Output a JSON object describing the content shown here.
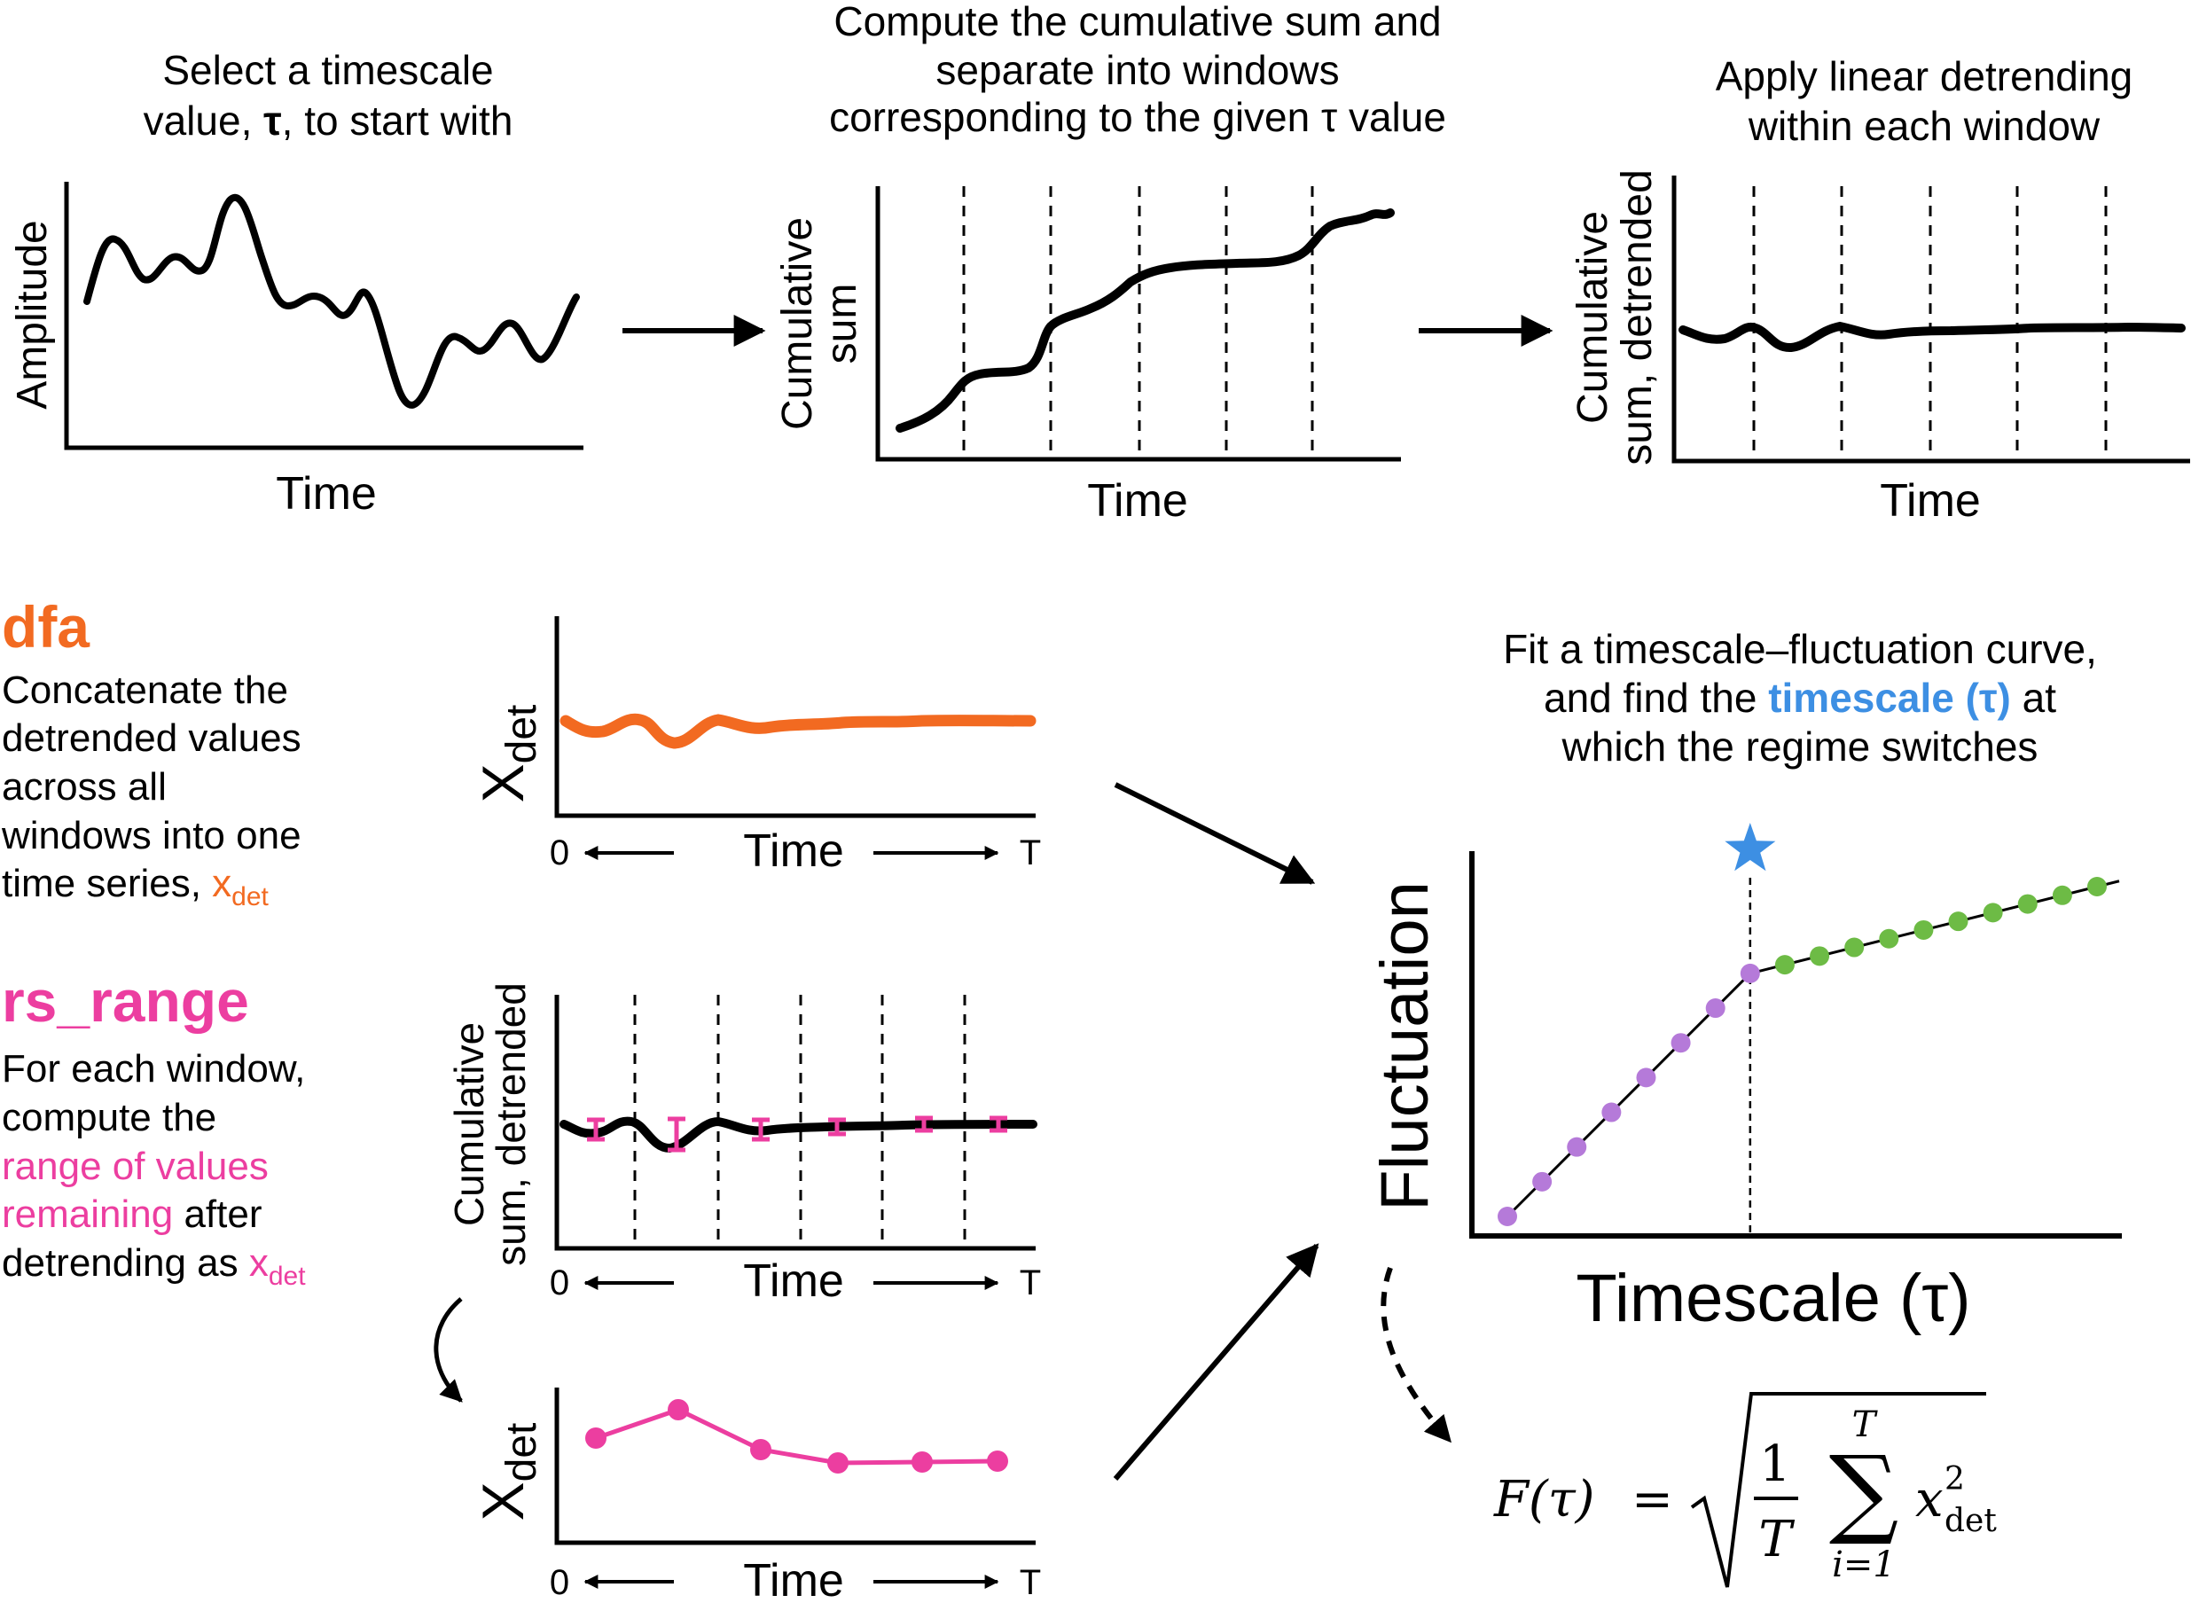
{
  "steps": {
    "step1": {
      "line1": "Select a timescale",
      "line2_pre": "value, ",
      "line2_tau": "τ",
      "line2_post": ", to start with"
    },
    "step2": {
      "line1": "Compute the cumulative sum and",
      "line2": "separate into windows",
      "line3": "corresponding to the given τ value"
    },
    "step3": {
      "line1": "Apply linear detrending",
      "line2": "within each window"
    }
  },
  "panels": {
    "amplitude": {
      "ylabel": "Amplitude",
      "xlabel": "Time"
    },
    "cumsum": {
      "ylabel_line1": "Cumulative",
      "ylabel_line2": "sum",
      "xlabel": "Time"
    },
    "detrended": {
      "ylabel_line1": "Cumulative",
      "ylabel_line2": "sum, detrended",
      "xlabel": "Time"
    }
  },
  "dfa": {
    "title": "dfa",
    "desc": [
      "Concatenate the",
      "detrended values",
      "across all",
      "windows into one"
    ],
    "last_pre": "time series, ",
    "xdet_main": "x",
    "xdet_sub": "det",
    "color": "#f26a21"
  },
  "rs_range": {
    "title": "rs_range",
    "line1": "For each window,",
    "line2": "compute the",
    "pink_line1": "range of values",
    "pink_line2_pink": "remaining",
    "pink_line2_rest": " after",
    "last_pre": "detrending as ",
    "xdet_main": "x",
    "xdet_sub": "det",
    "color": "#ec3ea0"
  },
  "mid_panels": {
    "dfa_panel": {
      "ylabel_main": "X",
      "ylabel_sub": "det",
      "x_start": "0",
      "x_label": "Time",
      "x_end": "T"
    },
    "rs_panel": {
      "ylabel_line1": "Cumulative",
      "ylabel_line2": "sum, detrended",
      "x_start": "0",
      "x_label": "Time",
      "x_end": "T"
    },
    "range_panel": {
      "ylabel_main": "X",
      "ylabel_sub": "det",
      "x_start": "0",
      "x_label": "Time",
      "x_end": "T"
    }
  },
  "fit": {
    "title_line1": "Fit a timescale–fluctuation curve,",
    "title_line2_pre": "and find the ",
    "title_line2_blue": "timescale (τ)",
    "title_line2_post": " at",
    "title_line3": "which the regime switches",
    "ylabel": "Fluctuation",
    "xlabel": "Timescale (τ)",
    "blue": "#3d8fe3",
    "purple": "#b57ad9",
    "green": "#6dbb45"
  },
  "chart_data": {
    "type": "scatter",
    "title": "",
    "xlabel": "Timescale (τ)",
    "ylabel": "Fluctuation",
    "series": [
      {
        "values": [
          [
            1,
            1
          ],
          [
            2,
            2
          ],
          [
            3,
            3
          ],
          [
            4,
            4
          ],
          [
            5,
            5
          ],
          [
            6,
            6
          ],
          [
            7,
            7
          ],
          [
            8,
            8
          ]
        ]
      },
      {
        "values": [
          [
            8,
            8
          ],
          [
            9,
            8.25
          ],
          [
            10,
            8.5
          ],
          [
            11,
            8.75
          ],
          [
            12,
            9
          ],
          [
            13,
            9.25
          ],
          [
            14,
            9.5
          ],
          [
            15,
            9.75
          ],
          [
            16,
            10
          ],
          [
            17,
            10.25
          ],
          [
            18,
            10.5
          ]
        ]
      }
    ],
    "breakpoint_x": 8,
    "grid": false
  },
  "formula": {
    "lhs": "F(τ)",
    "eq": "=",
    "num": "1",
    "den": "T",
    "sum_top": "T",
    "sum_bottom": "i=1",
    "var": "x",
    "exp": "2",
    "sub": "det"
  }
}
